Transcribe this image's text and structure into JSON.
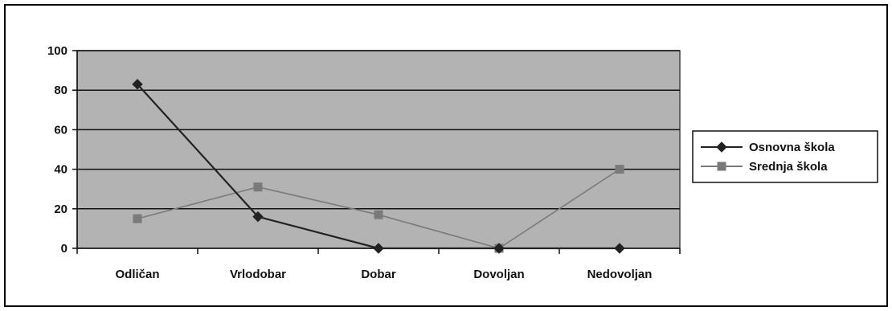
{
  "chart_data": {
    "type": "line",
    "title": "",
    "xlabel": "",
    "ylabel": "",
    "categories": [
      "Odličan",
      "Vrlodobar",
      "Dobar",
      "Dovoljan",
      "Nedovoljan"
    ],
    "ylim": [
      0,
      100
    ],
    "yticks": [
      0,
      20,
      40,
      60,
      80,
      100
    ],
    "grid": true,
    "legend_position": "right",
    "series": [
      {
        "name": "Osnovna škola",
        "values": [
          83,
          16,
          0,
          0,
          0
        ],
        "color": "#222222",
        "marker": "diamond"
      },
      {
        "name": "Srednja škola",
        "values": [
          15,
          31,
          17,
          0,
          40
        ],
        "color": "#7a7a7a",
        "marker": "square"
      }
    ],
    "plot_background": "#b3b3b3"
  }
}
